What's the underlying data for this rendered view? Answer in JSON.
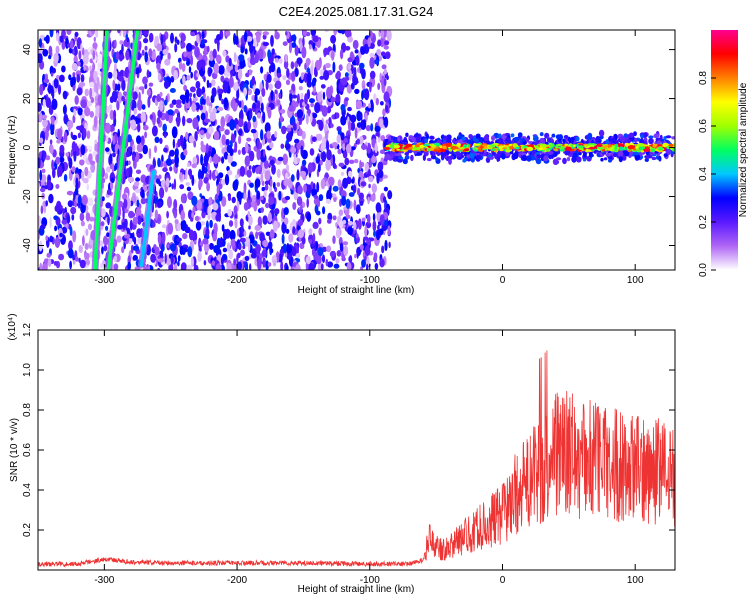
{
  "title": "C2E4.2025.081.17.31.G24",
  "chart_data": [
    {
      "type": "heatmap",
      "xlabel": "Height of straight line (km)",
      "ylabel": "Frequency (Hz)",
      "xlim": [
        -350,
        130
      ],
      "ylim": [
        -50,
        48
      ],
      "x_ticks": [
        "-300",
        "-200",
        "-100",
        "0",
        "100"
      ],
      "y_ticks": [
        "40",
        "20",
        "0",
        "-20",
        "-40"
      ],
      "colorbar": {
        "label": "Normalized spectral amplitude",
        "range": [
          0.0,
          1.0
        ],
        "ticks": [
          "0.0",
          "0.2",
          "0.4",
          "0.6",
          "0.8"
        ],
        "colors": [
          "#ffffff",
          "#b066f5",
          "#5a1aff",
          "#0000ff",
          "#00c8ff",
          "#00ff60",
          "#a0ff00",
          "#ffff00",
          "#ff8000",
          "#ff0000",
          "#ff0090"
        ]
      },
      "features": [
        {
          "name": "broadband noise region",
          "x_range": [
            -350,
            -85
          ],
          "amplitude": 0.2
        },
        {
          "name": "steady tone near 0 Hz",
          "x_range": [
            -88,
            130
          ],
          "frequency": 0,
          "amplitude": 0.8
        },
        {
          "name": "drifting line A",
          "points": [
            [
              -307,
              -50
            ],
            [
              -298,
              48
            ]
          ],
          "amplitude": 0.5
        },
        {
          "name": "drifting line B",
          "points": [
            [
              -297,
              -50
            ],
            [
              -275,
              48
            ]
          ],
          "amplitude": 0.5
        },
        {
          "name": "drifting line C",
          "points": [
            [
              -272,
              -48
            ],
            [
              -263,
              -10
            ]
          ],
          "amplitude": 0.4
        }
      ]
    },
    {
      "type": "line",
      "xlabel": "Height of straight line (km)",
      "ylabel": "SNR (10 * v/v)",
      "y_multiplier": "(x10⁴)",
      "xlim": [
        -350,
        130
      ],
      "ylim": [
        0,
        1.2
      ],
      "x_ticks": [
        "-300",
        "-200",
        "-100",
        "0",
        "100"
      ],
      "y_ticks": [
        "1.2",
        "1.0",
        "0.8",
        "0.6",
        "0.4",
        "0.2"
      ],
      "series": [
        {
          "color": "#ee3333",
          "x": [
            -350,
            -320,
            -300,
            -280,
            -250,
            -200,
            -150,
            -100,
            -70,
            -60,
            -55,
            -50,
            -45,
            -40,
            -30,
            -20,
            -10,
            0,
            10,
            20,
            30,
            40,
            50,
            60,
            70,
            80,
            90,
            100,
            110,
            120,
            130
          ],
          "y": [
            0.03,
            0.03,
            0.055,
            0.04,
            0.035,
            0.035,
            0.035,
            0.03,
            0.03,
            0.05,
            0.15,
            0.12,
            0.1,
            0.12,
            0.16,
            0.2,
            0.24,
            0.28,
            0.38,
            0.44,
            0.52,
            0.6,
            0.58,
            0.55,
            0.56,
            0.54,
            0.52,
            0.5,
            0.5,
            0.5,
            0.48
          ]
        }
      ]
    }
  ]
}
